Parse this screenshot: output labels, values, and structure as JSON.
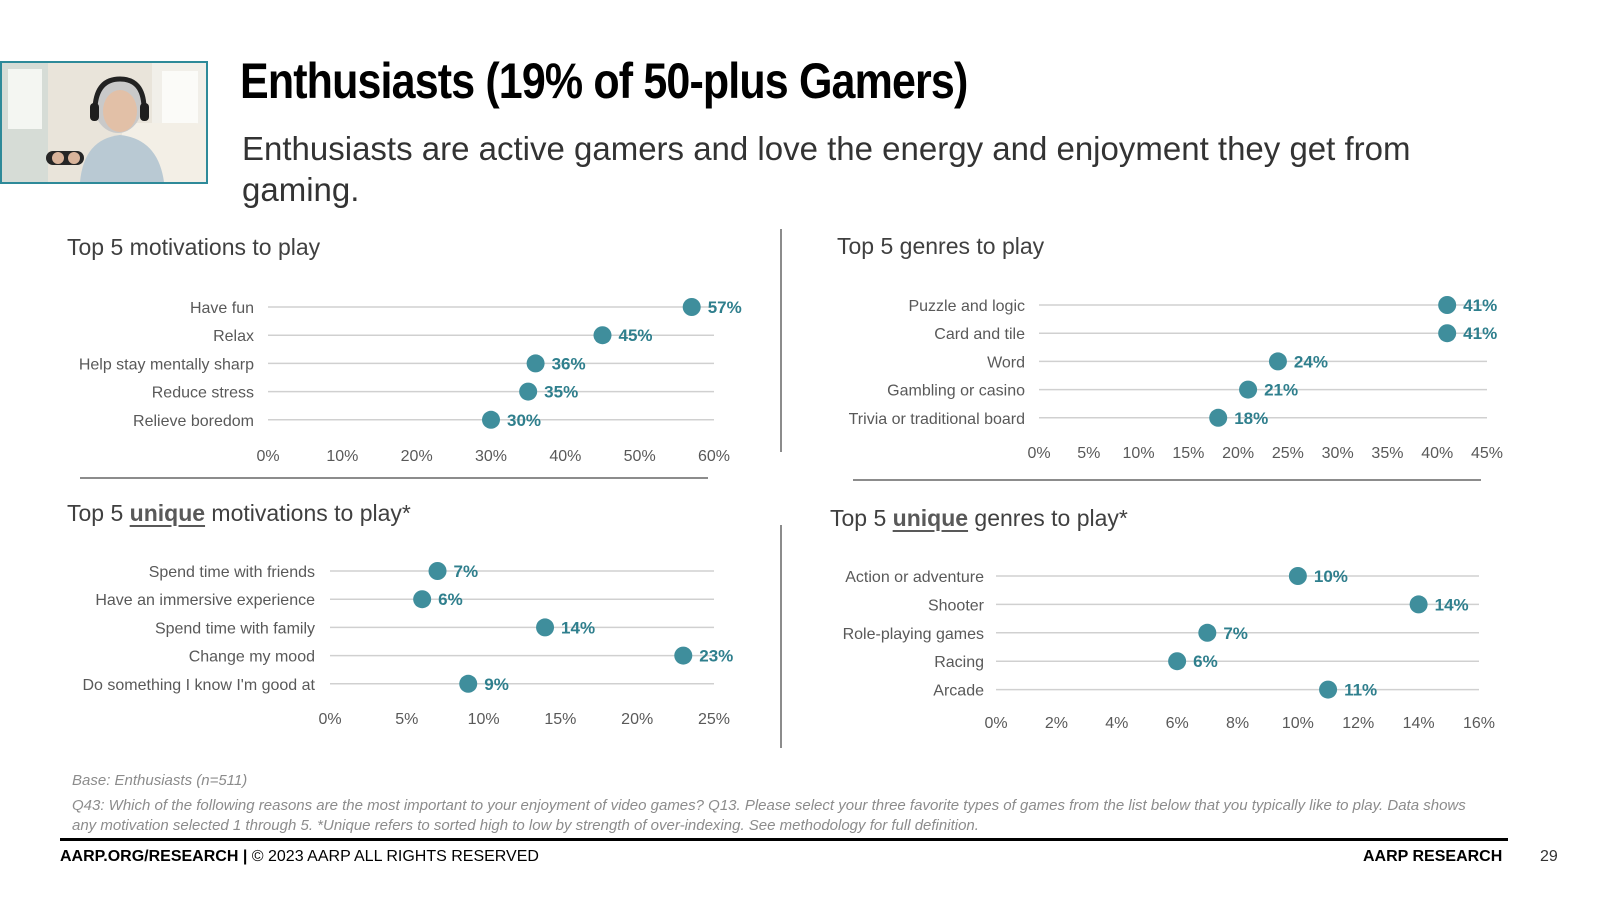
{
  "header": {
    "title": "Enthusiasts (19% of 50-plus Gamers)",
    "subtitle": "Enthusiasts are active gamers and love the energy and enjoyment they get from gaming."
  },
  "colors": {
    "accent": "#2e8a99",
    "dot": "#3f8e9c",
    "label": "#2f7f8d",
    "grid": "#d0d0d0"
  },
  "chart_data": [
    {
      "type": "lollipop",
      "title_prefix": "Top 5 ",
      "title_emphasis": "",
      "title_suffix": "motivations to play",
      "categories": [
        "Have fun",
        "Relax",
        "Help stay mentally sharp",
        "Reduce stress",
        "Relieve boredom"
      ],
      "values": [
        57,
        45,
        36,
        35,
        30
      ],
      "value_labels": [
        "57%",
        "45%",
        "36%",
        "35%",
        "30%"
      ],
      "ticks": [
        "0%",
        "10%",
        "20%",
        "30%",
        "40%",
        "50%",
        "60%"
      ],
      "xlim": [
        0,
        60
      ]
    },
    {
      "type": "lollipop",
      "title_prefix": "Top 5 genres to play",
      "title_emphasis": "",
      "title_suffix": "",
      "categories": [
        "Puzzle and logic",
        "Card and tile",
        "Word",
        "Gambling or casino",
        "Trivia or traditional board"
      ],
      "values": [
        41,
        41,
        24,
        21,
        18
      ],
      "value_labels": [
        "41%",
        "41%",
        "24%",
        "21%",
        "18%"
      ],
      "ticks": [
        "0%",
        "5%",
        "10%",
        "15%",
        "20%",
        "25%",
        "30%",
        "35%",
        "40%",
        "45%"
      ],
      "xlim": [
        0,
        45
      ]
    },
    {
      "type": "lollipop",
      "title_prefix": "Top 5 ",
      "title_emphasis": "unique",
      "title_suffix": " motivations to play*",
      "categories": [
        "Spend time with friends",
        "Have an immersive experience",
        "Spend time with family",
        "Change my mood",
        "Do something I know I'm good at"
      ],
      "values": [
        7,
        6,
        14,
        23,
        9
      ],
      "value_labels": [
        "7%",
        "6%",
        "14%",
        "23%",
        "9%"
      ],
      "ticks": [
        "0%",
        "5%",
        "10%",
        "15%",
        "20%",
        "25%"
      ],
      "xlim": [
        0,
        25
      ]
    },
    {
      "type": "lollipop",
      "title_prefix": "Top 5 ",
      "title_emphasis": "unique",
      "title_suffix": " genres to play*",
      "categories": [
        "Action or adventure",
        "Shooter",
        "Role-playing games",
        "Racing",
        "Arcade"
      ],
      "values": [
        10,
        14,
        7,
        6,
        11
      ],
      "value_labels": [
        "10%",
        "14%",
        "7%",
        "6%",
        "11%"
      ],
      "ticks": [
        "0%",
        "2%",
        "4%",
        "6%",
        "8%",
        "10%",
        "12%",
        "14%",
        "16%"
      ],
      "xlim": [
        0,
        16
      ]
    }
  ],
  "notes": {
    "base": "Base: Enthusiasts (n=511)",
    "footnote": "Q43: Which of the following reasons are the most important to your enjoyment of video games?  Q13. Please select your three favorite types of games from the list below that you typically like to play. Data shows any motivation selected 1 through 5. *Unique refers to sorted high to low by strength of over-indexing. See methodology for full definition."
  },
  "footer": {
    "left_bold": "AARP.ORG/RESEARCH |",
    "left_rest": " © 2023 AARP ALL RIGHTS RESERVED",
    "right": "AARP RESEARCH",
    "page": "29"
  }
}
